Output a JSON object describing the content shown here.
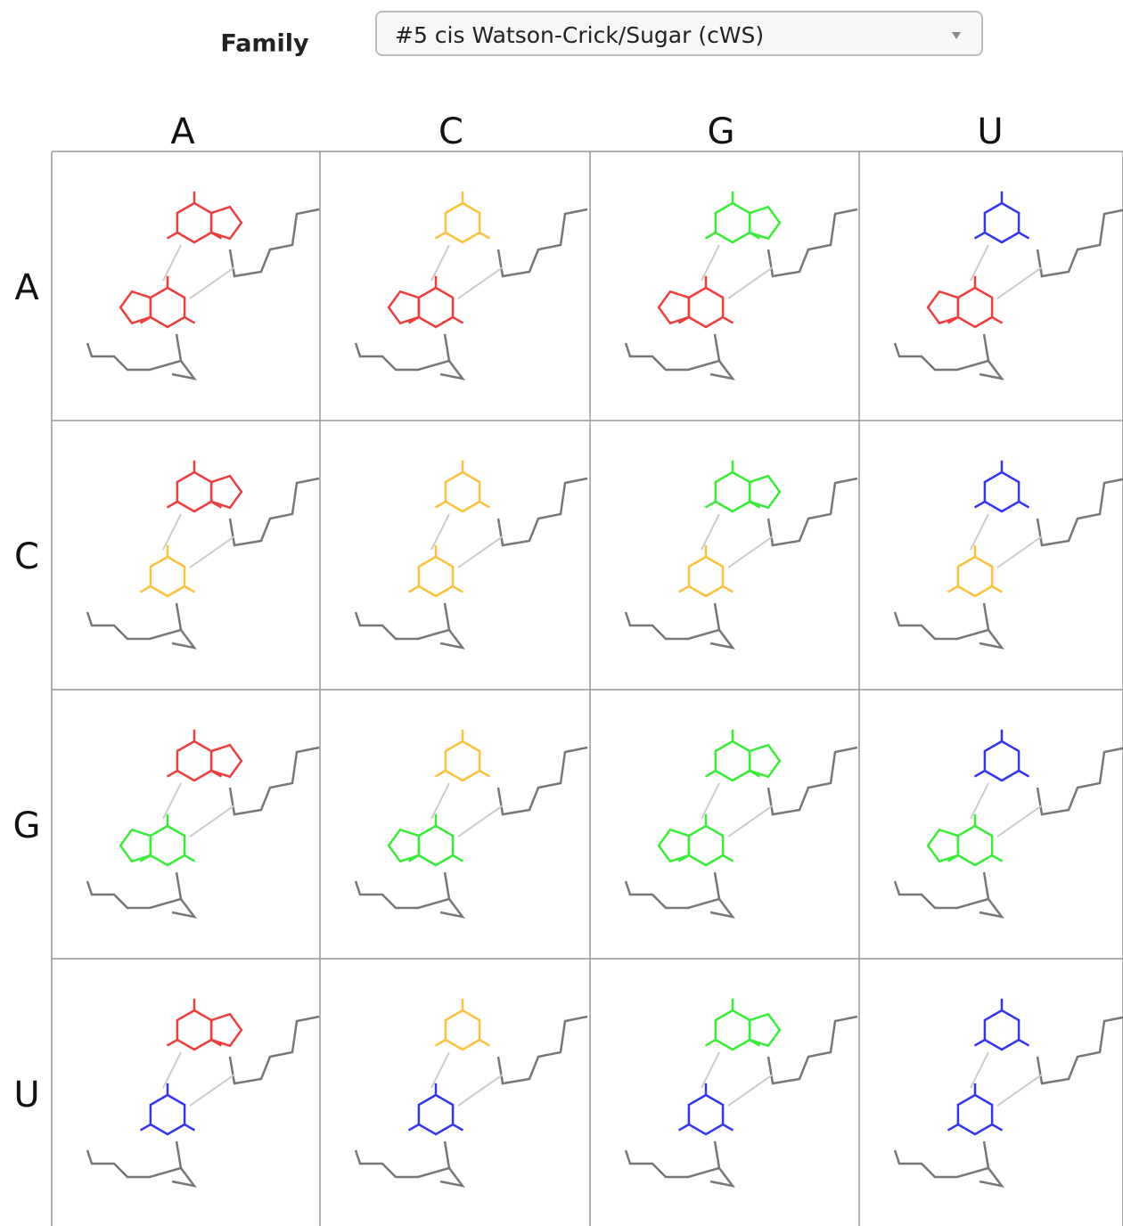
{
  "family_label": "Family",
  "family_select": {
    "value": "#5 cis Watson-Crick/Sugar (cWS)"
  },
  "columns": [
    "A",
    "C",
    "G",
    "U"
  ],
  "rows": [
    "A",
    "C",
    "G",
    "U"
  ]
}
